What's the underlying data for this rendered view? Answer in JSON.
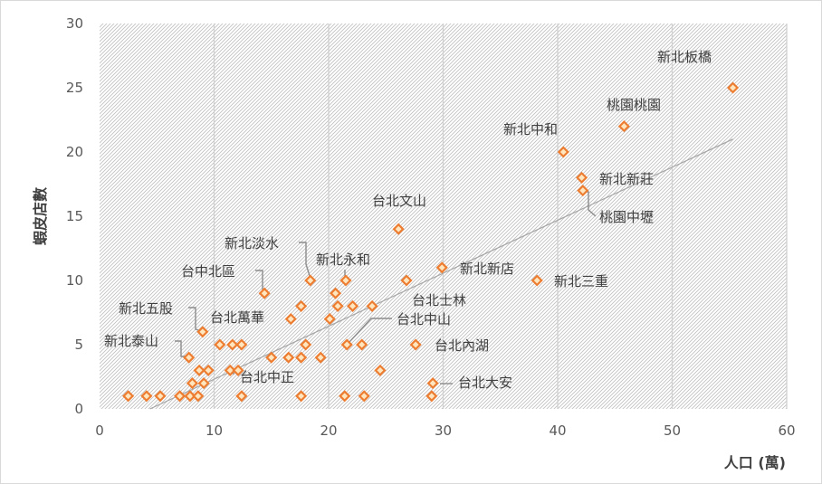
{
  "chart_data": {
    "type": "scatter",
    "xlabel": "人口 (萬)",
    "ylabel": "蝦皮店數",
    "xlim": [
      0,
      60
    ],
    "ylim": [
      0,
      30
    ],
    "x_ticks": [
      "0",
      "10",
      "20",
      "30",
      "40",
      "50",
      "60"
    ],
    "y_ticks": [
      "0",
      "5",
      "10",
      "15",
      "20",
      "25",
      "30"
    ],
    "grid": "vertical",
    "marker_color": "#ED7D31",
    "trendline": {
      "x": [
        4.4,
        55.3
      ],
      "y": [
        0,
        21
      ]
    },
    "points": [
      {
        "x": 2.5,
        "y": 1
      },
      {
        "x": 4.1,
        "y": 1
      },
      {
        "x": 5.3,
        "y": 1
      },
      {
        "x": 7.0,
        "y": 1
      },
      {
        "x": 7.9,
        "y": 1
      },
      {
        "x": 8.6,
        "y": 1
      },
      {
        "x": 12.4,
        "y": 1
      },
      {
        "x": 17.6,
        "y": 1
      },
      {
        "x": 21.4,
        "y": 1
      },
      {
        "x": 23.1,
        "y": 1
      },
      {
        "x": 29.0,
        "y": 1
      },
      {
        "x": 8.1,
        "y": 2
      },
      {
        "x": 9.1,
        "y": 2
      },
      {
        "x": 29.1,
        "y": 2
      },
      {
        "x": 8.7,
        "y": 3
      },
      {
        "x": 9.5,
        "y": 3
      },
      {
        "x": 11.4,
        "y": 3
      },
      {
        "x": 12.1,
        "y": 3
      },
      {
        "x": 24.5,
        "y": 3
      },
      {
        "x": 7.8,
        "y": 4
      },
      {
        "x": 15.0,
        "y": 4
      },
      {
        "x": 16.5,
        "y": 4
      },
      {
        "x": 17.6,
        "y": 4
      },
      {
        "x": 19.3,
        "y": 4
      },
      {
        "x": 10.5,
        "y": 5
      },
      {
        "x": 11.6,
        "y": 5
      },
      {
        "x": 12.4,
        "y": 5
      },
      {
        "x": 18.0,
        "y": 5
      },
      {
        "x": 21.6,
        "y": 5
      },
      {
        "x": 22.9,
        "y": 5
      },
      {
        "x": 27.6,
        "y": 5
      },
      {
        "x": 9.0,
        "y": 6
      },
      {
        "x": 16.7,
        "y": 7
      },
      {
        "x": 20.1,
        "y": 7
      },
      {
        "x": 17.6,
        "y": 8
      },
      {
        "x": 20.8,
        "y": 8
      },
      {
        "x": 22.1,
        "y": 8
      },
      {
        "x": 23.8,
        "y": 8
      },
      {
        "x": 14.4,
        "y": 9
      },
      {
        "x": 20.6,
        "y": 9
      },
      {
        "x": 18.4,
        "y": 10
      },
      {
        "x": 21.5,
        "y": 10
      },
      {
        "x": 26.8,
        "y": 10
      },
      {
        "x": 38.2,
        "y": 10
      },
      {
        "x": 29.9,
        "y": 11
      },
      {
        "x": 26.1,
        "y": 14
      },
      {
        "x": 42.2,
        "y": 17
      },
      {
        "x": 42.1,
        "y": 18
      },
      {
        "x": 40.5,
        "y": 20
      },
      {
        "x": 45.8,
        "y": 22
      },
      {
        "x": 55.3,
        "y": 25
      }
    ],
    "annotations": [
      {
        "text": "新北板橋",
        "x": 55.3,
        "y": 25
      },
      {
        "text": "桃園桃園",
        "x": 45.8,
        "y": 22
      },
      {
        "text": "新北中和",
        "x": 40.5,
        "y": 20
      },
      {
        "text": "新北新莊",
        "x": 42.1,
        "y": 18
      },
      {
        "text": "桃園中壢",
        "x": 42.2,
        "y": 17
      },
      {
        "text": "台北文山",
        "x": 26.1,
        "y": 14
      },
      {
        "text": "新北新店",
        "x": 29.9,
        "y": 11
      },
      {
        "text": "新北三重",
        "x": 38.2,
        "y": 10
      },
      {
        "text": "新北淡水",
        "x": 18.4,
        "y": 10
      },
      {
        "text": "新北永和",
        "x": 21.5,
        "y": 10
      },
      {
        "text": "台中北區",
        "x": 14.4,
        "y": 9
      },
      {
        "text": "台北士林",
        "x": 23.8,
        "y": 8
      },
      {
        "text": "新北五股",
        "x": 9.0,
        "y": 6
      },
      {
        "text": "台北萬華",
        "x": 17.6,
        "y": 8
      },
      {
        "text": "台北中山",
        "x": 21.6,
        "y": 5
      },
      {
        "text": "新北泰山",
        "x": 7.8,
        "y": 4
      },
      {
        "text": "台北內湖",
        "x": 27.6,
        "y": 5
      },
      {
        "text": "台北中正",
        "x": 12.1,
        "y": 3
      },
      {
        "text": "台北大安",
        "x": 29.1,
        "y": 2
      }
    ]
  }
}
